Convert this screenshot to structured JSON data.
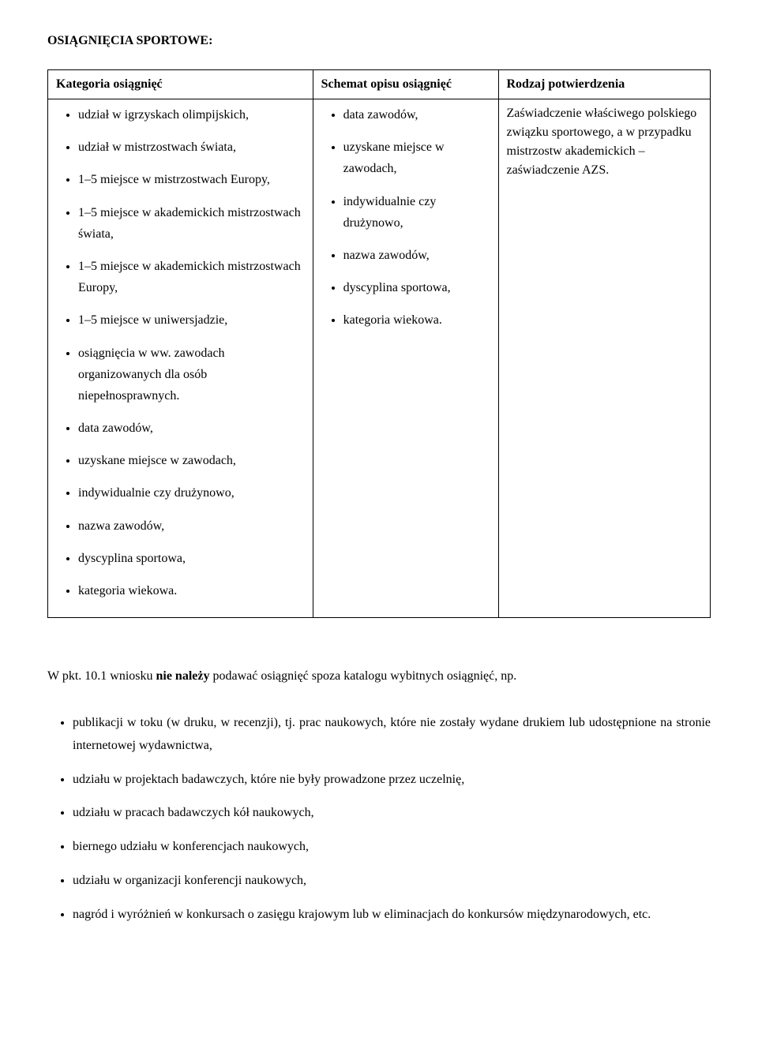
{
  "heading": "OSIĄGNIĘCIA SPORTOWE:",
  "table": {
    "headers": {
      "col1": "Kategoria osiągnięć",
      "col2": "Schemat opisu osiągnięć",
      "col3": "Rodzaj potwierdzenia"
    },
    "col1_items": [
      "udział w igrzyskach olimpijskich,",
      "udział w mistrzostwach świata,",
      "1–5 miejsce w mistrzostwach Europy,",
      "1–5 miejsce w akademickich mistrzostwach świata,",
      "1–5 miejsce w akademickich mistrzostwach Europy,",
      "1–5 miejsce w uniwersjadzie,",
      "osiągnięcia w ww. zawodach organizowanych dla osób niepełnosprawnych.",
      "data zawodów,",
      "uzyskane miejsce w zawodach,",
      "indywidualnie czy drużynowo,",
      "nazwa zawodów,",
      "dyscyplina sportowa,",
      "kategoria wiekowa."
    ],
    "col2_items": [
      "data zawodów,",
      "uzyskane miejsce w zawodach,",
      "indywidualnie czy drużynowo,",
      "nazwa zawodów,",
      "dyscyplina sportowa,",
      "kategoria wiekowa."
    ],
    "col3_text": "Zaświadczenie właściwego polskiego związku sportowego, a w przypadku mistrzostw akademickich – zaświadczenie AZS."
  },
  "paragraph": {
    "pre": "W pkt. 10.1 wniosku ",
    "bold": "nie należy",
    "post": " podawać osiągnięć spoza katalogu wybitnych osiągnięć, np."
  },
  "bottom_list": [
    "publikacji w toku (w druku, w recenzji), tj. prac naukowych, które nie zostały wydane drukiem lub udostępnione na stronie internetowej wydawnictwa,",
    "udziału w projektach badawczych, które nie były prowadzone przez uczelnię,",
    "udziału w pracach badawczych kół naukowych,",
    "biernego udziału w konferencjach naukowych,",
    "udziału w organizacji konferencji naukowych,",
    "nagród i wyróżnień w konkursach o zasięgu krajowym lub w eliminacjach do konkursów międzynarodowych, etc."
  ]
}
